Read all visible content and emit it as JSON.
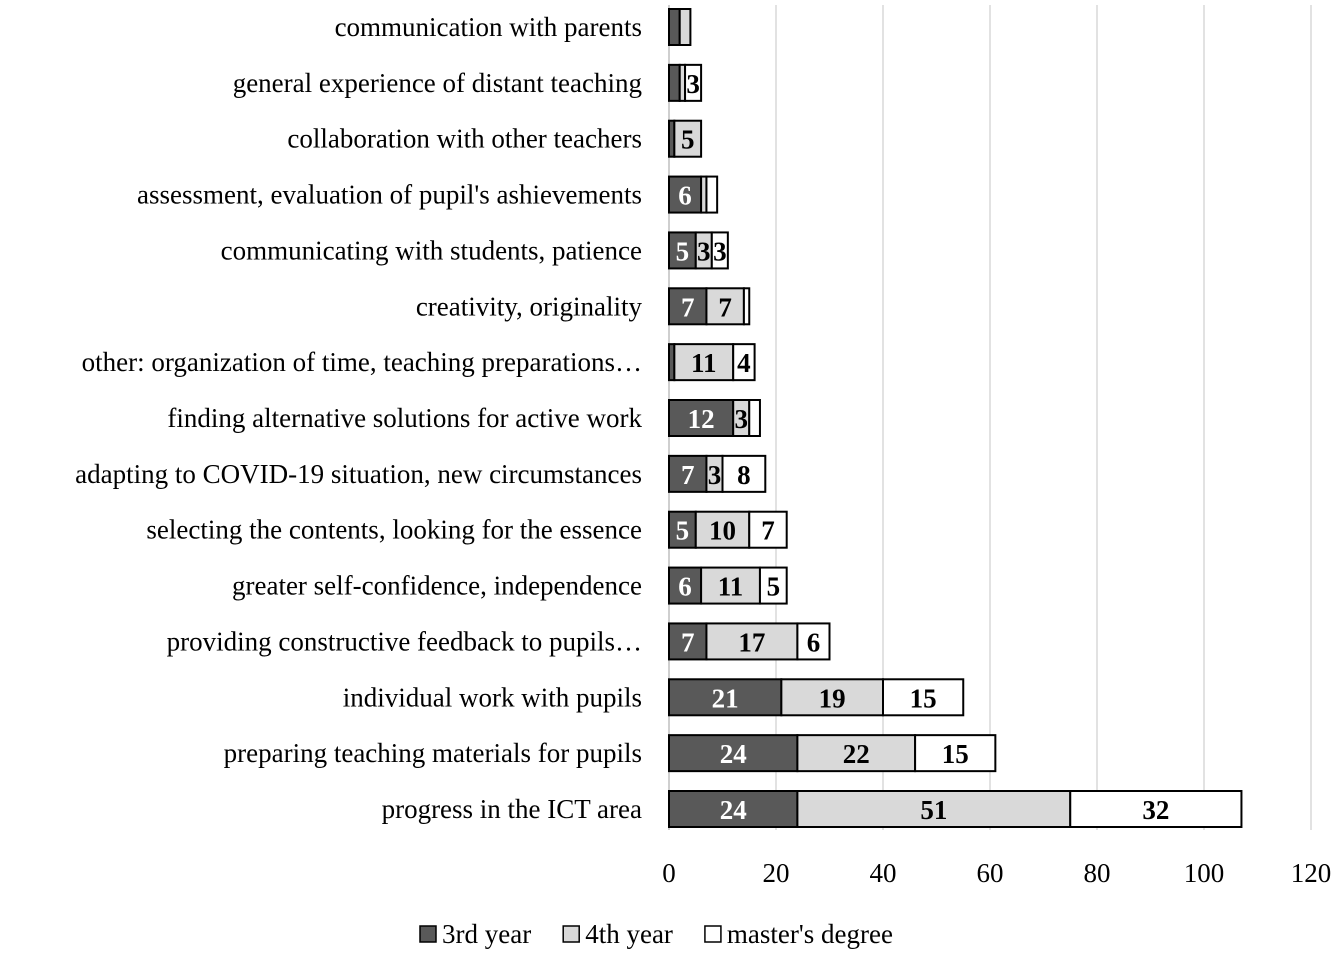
{
  "chart_data": {
    "type": "bar",
    "orientation": "horizontal",
    "stacked": true,
    "categories": [
      "communication with parents",
      "general experience of distant teaching",
      "collaboration with other teachers",
      "assessment, evaluation of pupil's ashievements",
      "communicating with students, patience",
      "creativity, originality",
      "other: organization of time, teaching preparations…",
      "finding alternative solutions for active work",
      "adapting to COVID-19 situation, new circumstances",
      "selecting the contents, looking for the essence",
      "greater self-confidence, independence",
      "providing constructive feedback to pupils…",
      "individual work with pupils",
      "preparing teaching materials for pupils",
      "progress in the ICT area"
    ],
    "series": [
      {
        "name": "3rd year",
        "color": "#595959",
        "label_color": "#ffffff",
        "values": [
          2,
          2,
          1,
          6,
          5,
          7,
          1,
          12,
          7,
          5,
          6,
          7,
          21,
          24,
          24
        ]
      },
      {
        "name": "4th year",
        "color": "#d9d9d9",
        "label_color": "#000000",
        "values": [
          2,
          1,
          5,
          1,
          3,
          7,
          11,
          3,
          3,
          10,
          11,
          17,
          19,
          22,
          51
        ]
      },
      {
        "name": "master's degree",
        "color": "#ffffff",
        "label_color": "#000000",
        "values": [
          0,
          3,
          0,
          2,
          3,
          1,
          4,
          2,
          8,
          7,
          5,
          6,
          15,
          15,
          32
        ]
      }
    ],
    "xlim": [
      0,
      120
    ],
    "xticks": [
      "0",
      "20",
      "40",
      "60",
      "80",
      "100",
      "120"
    ],
    "grid": true,
    "legend_position": "bottom",
    "min_label_value": 3
  }
}
